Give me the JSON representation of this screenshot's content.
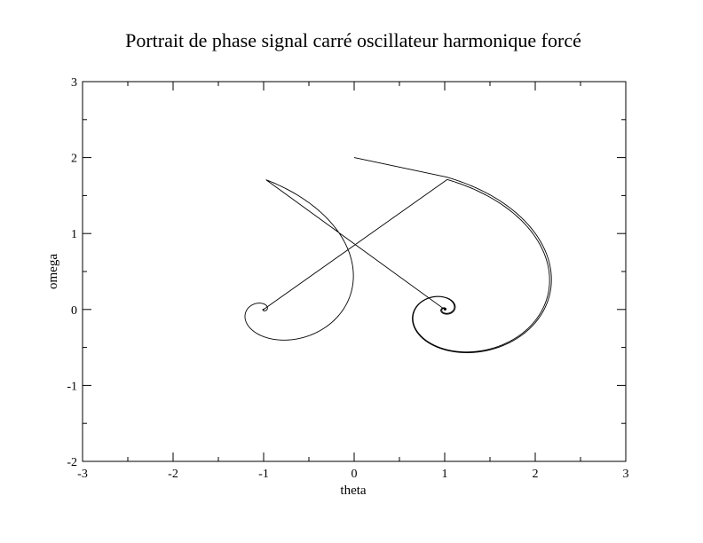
{
  "chart_data": {
    "type": "line",
    "title": "Portrait de phase signal carré oscillateur harmonique forcé",
    "xlabel": "theta",
    "ylabel": "omega",
    "xlim": [
      -3,
      3
    ],
    "ylim": [
      -2,
      3
    ],
    "xticks": [
      "-3",
      "-2",
      "-1",
      "0",
      "1",
      "2",
      "3"
    ],
    "yticks": [
      "-2",
      "-1",
      "0",
      "1",
      "2",
      "3"
    ],
    "grid": false,
    "legend": "none",
    "line_color": "#000000",
    "series": [
      {
        "start": [
          0.0,
          2.0
        ],
        "spirals": [
          {
            "center": [
              1.0,
              0.0
            ],
            "from": 0.0,
            "to": 1.0,
            "r0": 1.75,
            "decay": 0.38,
            "aspect": 1.2
          },
          {
            "center": [
              -1.0,
              0.0
            ],
            "from": 1.0,
            "to": 3.0,
            "r0": 1.72,
            "decay": 0.5,
            "aspect": 1.18
          },
          {
            "center": [
              1.0,
              0.0
            ],
            "from": 3.0,
            "to": 5.0,
            "r0": 1.72,
            "decay": 0.38,
            "aspect": 1.2
          }
        ]
      }
    ]
  }
}
